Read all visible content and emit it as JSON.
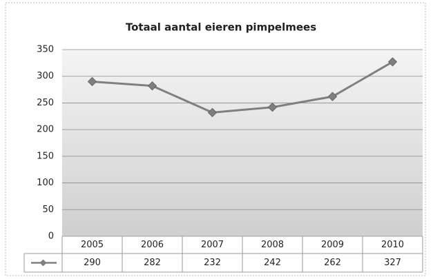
{
  "chart_data": {
    "type": "line",
    "title": "Totaal aantal eieren pimpelmees",
    "categories": [
      "2005",
      "2006",
      "2007",
      "2008",
      "2009",
      "2010"
    ],
    "series": [
      {
        "color": "#7f7f7f",
        "values": [
          290,
          282,
          232,
          242,
          262,
          327
        ]
      }
    ],
    "ylim": [
      0,
      350
    ],
    "yticks": [
      0,
      50,
      100,
      150,
      200,
      250,
      300,
      350
    ],
    "grid": true
  }
}
